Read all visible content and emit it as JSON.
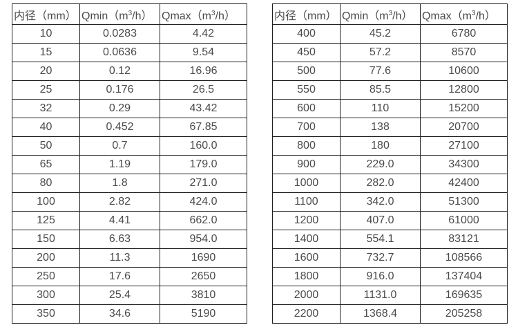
{
  "colors": {
    "text": "#4a4a4a",
    "border": "#1f1f1f",
    "background": "#ffffff"
  },
  "tables": [
    {
      "header": {
        "col1": "内径（mm）",
        "col2_pre": "Qmin（m",
        "col2_sup": "3",
        "col2_post": "/h）",
        "col3_pre": "Qmax（m",
        "col3_sup": "3",
        "col3_post": "/h）"
      },
      "rows": [
        [
          "10",
          "0.0283",
          "4.42"
        ],
        [
          "15",
          "0.0636",
          "9.54"
        ],
        [
          "20",
          "0.12",
          "16.96"
        ],
        [
          "25",
          "0.176",
          "26.5"
        ],
        [
          "32",
          "0.29",
          "43.42"
        ],
        [
          "40",
          "0.452",
          "67.85"
        ],
        [
          "50",
          "0.7",
          "160.0"
        ],
        [
          "65",
          "1.19",
          "179.0"
        ],
        [
          "80",
          "1.8",
          "271.0"
        ],
        [
          "100",
          "2.82",
          "424.0"
        ],
        [
          "125",
          "4.41",
          "662.0"
        ],
        [
          "150",
          "6.63",
          "954.0"
        ],
        [
          "200",
          "11.3",
          "1690"
        ],
        [
          "250",
          "17.6",
          "2650"
        ],
        [
          "300",
          "25.4",
          "3810"
        ],
        [
          "350",
          "34.6",
          "5190"
        ]
      ]
    },
    {
      "header": {
        "col1": "内径（mm）",
        "col2_pre": "Qmin（m",
        "col2_sup": "3",
        "col2_post": "/h）",
        "col3_pre": "Qmax（m",
        "col3_sup": "3",
        "col3_post": "/h）"
      },
      "rows": [
        [
          "400",
          "45.2",
          "6780"
        ],
        [
          "450",
          "57.2",
          "8570"
        ],
        [
          "500",
          "77.6",
          "10600"
        ],
        [
          "550",
          "85.5",
          "12800"
        ],
        [
          "600",
          "110",
          "15200"
        ],
        [
          "700",
          "138",
          "20700"
        ],
        [
          "800",
          "180",
          "27100"
        ],
        [
          "900",
          "229.0",
          "34300"
        ],
        [
          "1000",
          "282.0",
          "42400"
        ],
        [
          "1100",
          "342.0",
          "51300"
        ],
        [
          "1200",
          "407.0",
          "61000"
        ],
        [
          "1400",
          "554.1",
          "83121"
        ],
        [
          "1600",
          "732.7",
          "108566"
        ],
        [
          "1800",
          "916.0",
          "137404"
        ],
        [
          "2000",
          "1131.0",
          "169635"
        ],
        [
          "2200",
          "1368.4",
          "205258"
        ]
      ]
    }
  ]
}
